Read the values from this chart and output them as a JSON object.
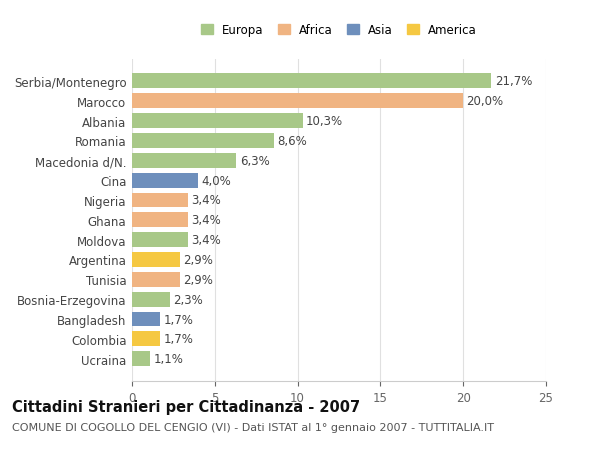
{
  "title": "Cittadini Stranieri per Cittadinanza - 2007",
  "subtitle": "COMUNE DI COGOLLO DEL CENGIO (VI) - Dati ISTAT al 1° gennaio 2007 - TUTTITALIA.IT",
  "categories": [
    "Serbia/Montenegro",
    "Marocco",
    "Albania",
    "Romania",
    "Macedonia d/N.",
    "Cina",
    "Nigeria",
    "Ghana",
    "Moldova",
    "Argentina",
    "Tunisia",
    "Bosnia-Erzegovina",
    "Bangladesh",
    "Colombia",
    "Ucraina"
  ],
  "values": [
    21.7,
    20.0,
    10.3,
    8.6,
    6.3,
    4.0,
    3.4,
    3.4,
    3.4,
    2.9,
    2.9,
    2.3,
    1.7,
    1.7,
    1.1
  ],
  "continents": [
    "Europa",
    "Africa",
    "Europa",
    "Europa",
    "Europa",
    "Asia",
    "Africa",
    "Africa",
    "Europa",
    "America",
    "Africa",
    "Europa",
    "Asia",
    "America",
    "Europa"
  ],
  "colors": {
    "Europa": "#a8c888",
    "Africa": "#f0b482",
    "Asia": "#6e8fbc",
    "America": "#f5c842"
  },
  "xlim": [
    0,
    25
  ],
  "xticks": [
    0,
    5,
    10,
    15,
    20,
    25
  ],
  "background_color": "#ffffff",
  "bar_height": 0.75,
  "label_fontsize": 8.5,
  "tick_fontsize": 8.5,
  "title_fontsize": 10.5,
  "subtitle_fontsize": 8.0
}
